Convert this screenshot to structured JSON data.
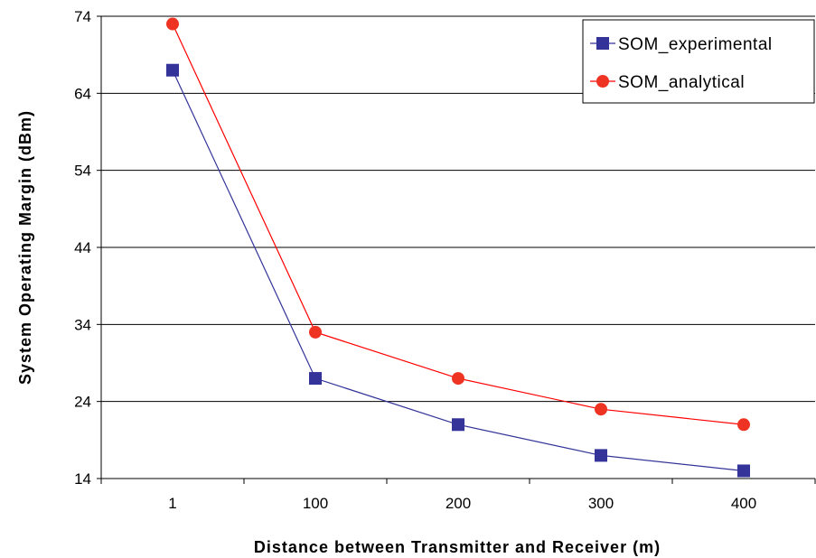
{
  "chart_data": {
    "type": "line",
    "categories": [
      "1",
      "100",
      "200",
      "300",
      "400"
    ],
    "series": [
      {
        "name": "SOM_experimental",
        "values": [
          67,
          27,
          21,
          17,
          15
        ],
        "color": "#333399",
        "marker": "square"
      },
      {
        "name": "SOM_analytical",
        "values": [
          73,
          33,
          27,
          23,
          21
        ],
        "color": "#ff0000",
        "marker": "circle",
        "marker_fill": "#ee3322"
      }
    ],
    "title": "",
    "xlabel": "Distance between Transmitter and Receiver (m)",
    "ylabel": "System Operating Margin (dBm)",
    "ylim": [
      14,
      74
    ],
    "yticks": [
      "74",
      "64",
      "54",
      "44",
      "34",
      "24",
      "14"
    ],
    "grid": "horizontal",
    "legend_position": "top-right"
  }
}
